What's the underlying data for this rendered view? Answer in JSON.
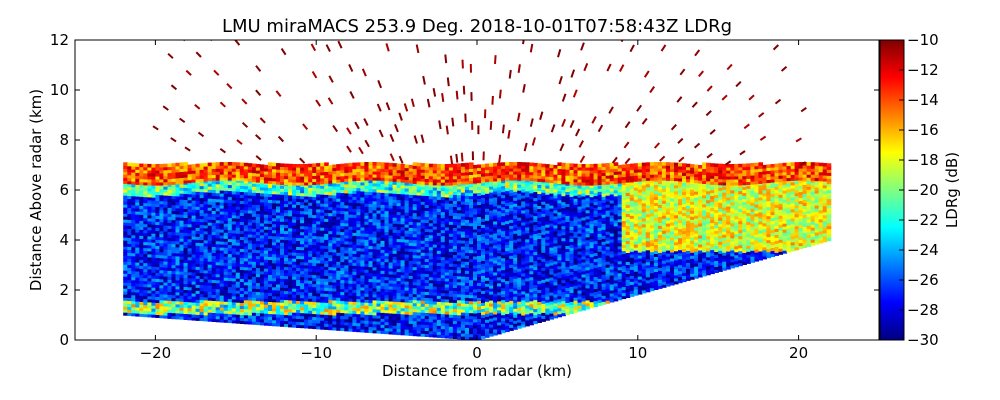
{
  "chart_data": {
    "type": "heatmap",
    "title": "LMU miraMACS 253.9 Deg. 2018-10-01T07:58:43Z  LDRg",
    "xlabel": "Distance from radar (km)",
    "ylabel": "Distance Above radar  (km)",
    "xlim": [
      -25,
      25
    ],
    "ylim": [
      0,
      12
    ],
    "x_ticks": [
      -20,
      -10,
      0,
      10,
      20
    ],
    "x_tick_labels": [
      "−20",
      "−10",
      "0",
      "10",
      "20"
    ],
    "y_ticks": [
      0,
      2,
      4,
      6,
      8,
      10,
      12
    ],
    "y_tick_labels": [
      "0",
      "2",
      "4",
      "6",
      "8",
      "10",
      "12"
    ],
    "scan": {
      "azimuth_deg": 253.9,
      "left_extent_km": -22,
      "right_extent_km": 22,
      "max_range_km": 22.5,
      "low_elevation_left_km": 1.0,
      "low_elevation_right_km": 4.0
    },
    "layers": [
      {
        "name": "surface-clutter-layer",
        "x_range": [
          -22,
          9
        ],
        "z_range": [
          1.0,
          1.5
        ],
        "ldr_db": -20
      },
      {
        "name": "cloud-bulk",
        "z_range": [
          1.0,
          6.5
        ],
        "ldr_db": -27
      },
      {
        "name": "melting-layer-top",
        "z_range": [
          6.3,
          7.0
        ],
        "ldr_db": -14
      },
      {
        "name": "noise-aloft",
        "z_range": [
          7.0,
          12.0
        ],
        "ldr_db": -10
      },
      {
        "name": "enhanced-region-right",
        "x_range": [
          9,
          22
        ],
        "z_range": [
          3.5,
          6.5
        ],
        "ldr_db": -18
      }
    ],
    "colorbar": {
      "label": "LDRg (dB)",
      "range": [
        -30,
        -10
      ],
      "ticks": [
        -10,
        -12,
        -14,
        -16,
        -18,
        -20,
        -22,
        -24,
        -26,
        -28,
        -30
      ],
      "tick_labels": [
        "−10",
        "−12",
        "−14",
        "−16",
        "−18",
        "−20",
        "−22",
        "−24",
        "−26",
        "−28",
        "−30"
      ],
      "colormap": [
        "#00007f",
        "#0000ff",
        "#007fff",
        "#00ffff",
        "#7fff7f",
        "#ffff00",
        "#ff7f00",
        "#ff0000",
        "#7f0000"
      ]
    }
  }
}
